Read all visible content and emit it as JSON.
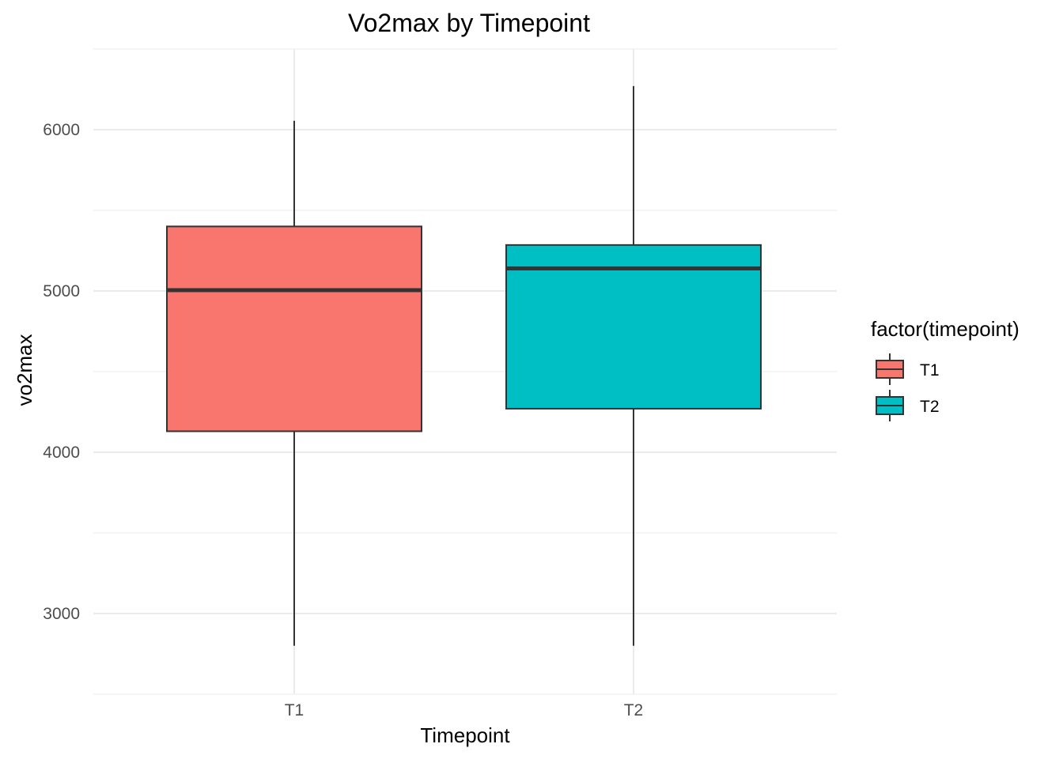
{
  "chart_data": {
    "type": "boxplot",
    "title": "Vo2max by Timepoint",
    "xlabel": "Timepoint",
    "ylabel": "vo2max",
    "categories": [
      "T1",
      "T2"
    ],
    "boxes": [
      {
        "category": "T1",
        "min": 2800,
        "q1": 4130,
        "median": 5005,
        "q3": 5400,
        "max": 6055,
        "color": "#F8766D"
      },
      {
        "category": "T2",
        "min": 2800,
        "q1": 4270,
        "median": 5140,
        "q3": 5285,
        "max": 6270,
        "color": "#00BFC4"
      }
    ],
    "ylim": [
      2500,
      6500
    ],
    "yticks": [
      3000,
      4000,
      5000,
      6000
    ],
    "ytick_labels": [
      "3000",
      "4000",
      "5000",
      "6000"
    ],
    "grid": true,
    "legend": {
      "title": "factor(timepoint)",
      "placement": "right",
      "entries": [
        {
          "label": "T1",
          "color": "#F8766D"
        },
        {
          "label": "T2",
          "color": "#00BFC4"
        }
      ]
    }
  }
}
